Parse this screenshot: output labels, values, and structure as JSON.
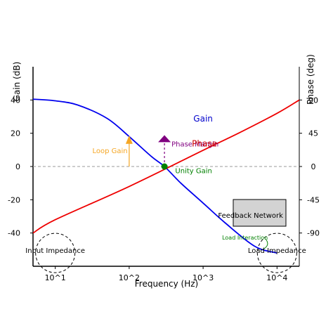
{
  "chart_data": {
    "type": "line",
    "xlabel": "Frequency (Hz)",
    "ylabel_left": "Gain (dB)",
    "ylabel_right": "Phase (deg)",
    "x_scale": "log",
    "xlim": [
      5,
      20000
    ],
    "ylim_left": [
      -60,
      60
    ],
    "ylim_right": [
      -135,
      135
    ],
    "x_ticks": [
      {
        "value": 10,
        "label": "10^1"
      },
      {
        "value": 100,
        "label": "10^2"
      },
      {
        "value": 1000,
        "label": "10^3"
      },
      {
        "value": 10000,
        "label": "10^4"
      }
    ],
    "y_left_ticks": [
      {
        "value": 40,
        "label": "40"
      },
      {
        "value": 20,
        "label": "20"
      },
      {
        "value": 0,
        "label": "0"
      },
      {
        "value": -20,
        "label": "-20"
      },
      {
        "value": -40,
        "label": "-40"
      }
    ],
    "y_right_ticks": [
      {
        "value": 90,
        "label": "90"
      },
      {
        "value": 45,
        "label": "45"
      },
      {
        "value": 0,
        "label": "0"
      },
      {
        "value": -45,
        "label": "-45"
      },
      {
        "value": -90,
        "label": "-90"
      }
    ],
    "grid": false,
    "reference_line": {
      "y": 0,
      "axis": "left",
      "color": "#999999"
    },
    "series": [
      {
        "name": "Gain",
        "axis": "left",
        "color": "#0000ee",
        "x": [
          5,
          10,
          20,
          50,
          100,
          200,
          300,
          500,
          1000,
          2000,
          5000,
          10000
        ],
        "y": [
          40.5,
          39.5,
          37,
          29,
          18,
          6,
          0,
          -10,
          -22,
          -34,
          -48,
          -52
        ]
      },
      {
        "name": "Phase",
        "axis": "right",
        "color": "#ee0000",
        "x": [
          5,
          10,
          100,
          1000,
          3000,
          10000,
          20000
        ],
        "y": [
          -90,
          -72,
          -27,
          22,
          45,
          72,
          90
        ]
      }
    ],
    "annotations": [
      {
        "text": "Gain",
        "x": 1000,
        "y": 27,
        "color": "#0000cc"
      },
      {
        "text": "Phase Margin",
        "x": 300,
        "y": 12,
        "color": "#800080"
      },
      {
        "text": "Phase",
        "x": 1000,
        "y": 12,
        "color": "#cc0000"
      },
      {
        "text": "Loop Gain",
        "x": 55,
        "y": 8,
        "color": "#f5a623"
      },
      {
        "text": "Unity Gain",
        "x": 500,
        "y": -4,
        "color": "#008000"
      },
      {
        "text": "Feedback Network",
        "x": 5000,
        "y": -30,
        "color": "#000000"
      },
      {
        "text": "Input Impedance",
        "x": 10,
        "y": -52,
        "color": "#000000"
      },
      {
        "text": "Load Impedance",
        "x": 10000,
        "y": -52,
        "color": "#000000"
      },
      {
        "text": "Load Interaction",
        "x": 5000,
        "y": -44,
        "color": "#008000"
      }
    ],
    "unity_gain_point": {
      "x": 300,
      "y": 0,
      "color": "#008000"
    },
    "phase_margin_marker": {
      "x": 300,
      "y_from": 0,
      "y_to": 18,
      "color": "#800080"
    },
    "loop_gain_arrow": {
      "x": 100,
      "y_from": 0,
      "y_to": 17,
      "color": "#f5a623"
    }
  }
}
